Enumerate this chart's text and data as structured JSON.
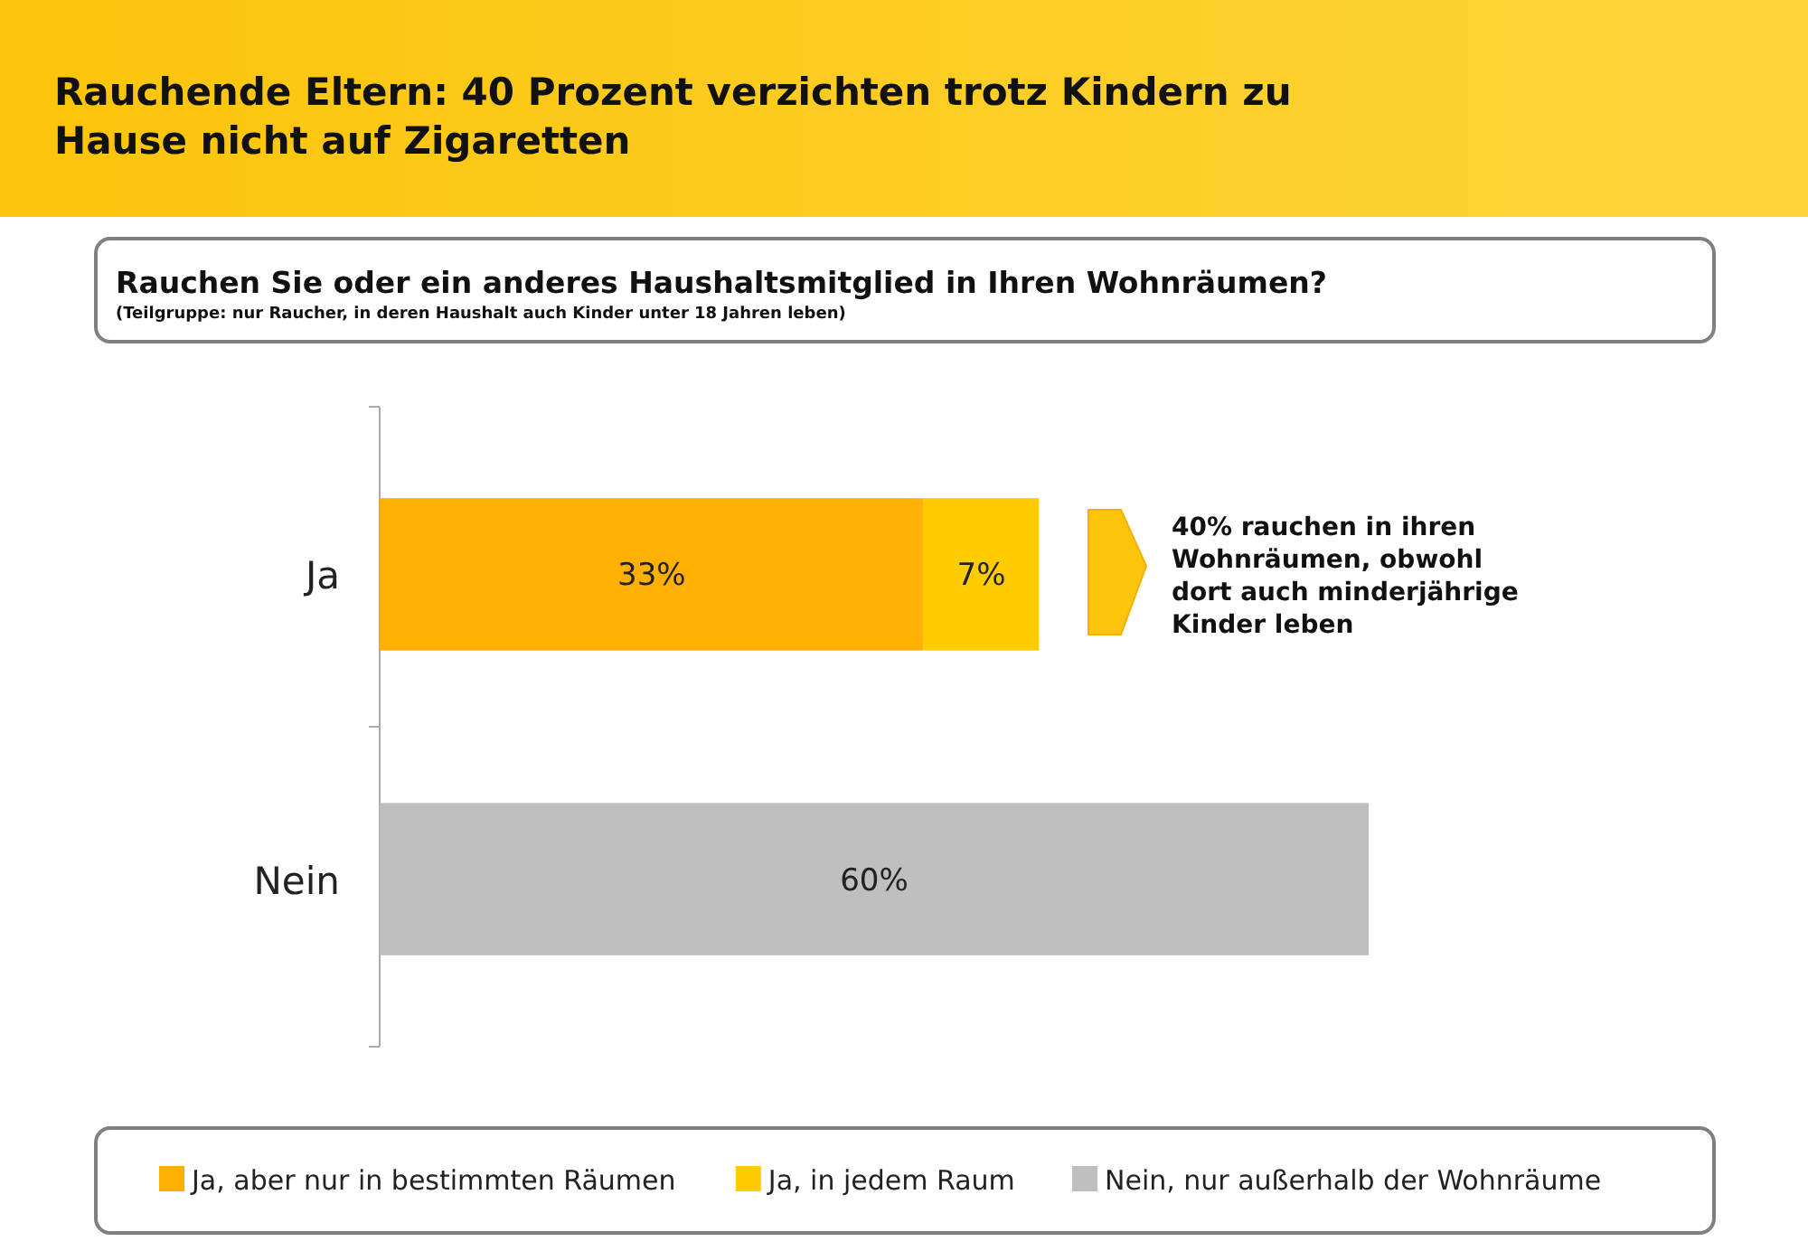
{
  "chart_data": {
    "type": "bar",
    "orientation": "horizontal",
    "stacked": true,
    "title": "Rauchende Eltern: 40 Prozent verzichten trotz Kindern zu Hause nicht auf Zigaretten",
    "subtitle": "Rauchen Sie oder ein anderes Haushaltsmitglied in Ihren Wohnräumen?",
    "annotations": [
      "(Teilgruppe: nur Raucher, in deren Haushalt auch Kinder unter 18 Jahren leben)",
      "40% rauchen in ihren Wohnräumen, obwohl dort auch minderjährige Kinder leben"
    ],
    "categories": [
      "Ja",
      "Nein"
    ],
    "series": [
      {
        "name": "Ja, aber nur in bestimmten Räumen",
        "color": "#ffb000",
        "values": [
          33,
          null
        ],
        "value_labels": [
          "33%",
          null
        ]
      },
      {
        "name": "Ja, in jedem Raum",
        "color": "#ffcc00",
        "values": [
          7,
          null
        ],
        "value_labels": [
          "7%",
          null
        ]
      },
      {
        "name": "Nein, nur außerhalb der Wohnräume",
        "color": "#bfbfbf",
        "values": [
          null,
          60
        ],
        "value_labels": [
          null,
          "60%"
        ]
      }
    ],
    "legend": "bottom"
  }
}
